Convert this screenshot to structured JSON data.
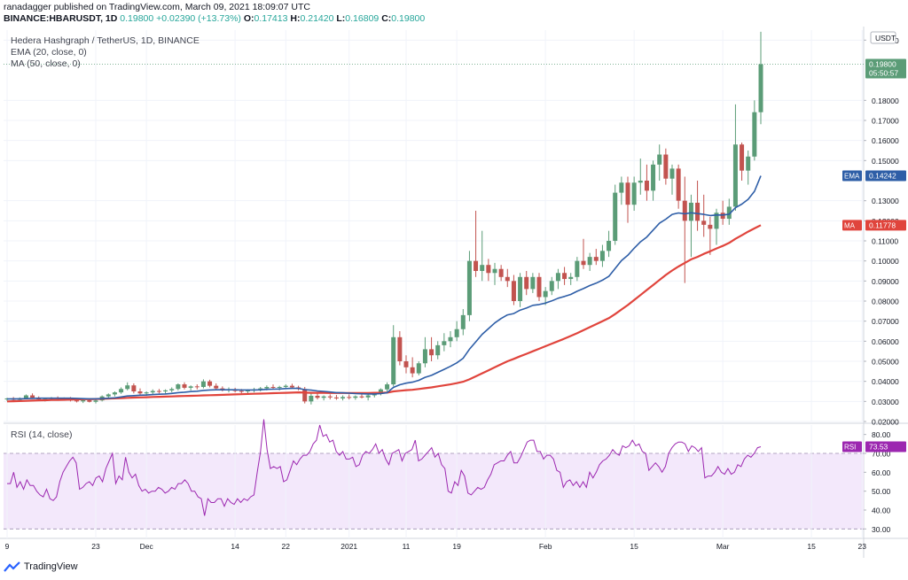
{
  "header": {
    "published": "ranadagger published on TradingView.com, March 09, 2021 18:09:07 UTC",
    "symbol": "BINANCE:HBARUSDT, 1D",
    "last": "0.19800",
    "change": "+0.02390 (+13.73%)",
    "o_label": "O:",
    "o": "0.17413",
    "h_label": "H:",
    "h": "0.21420",
    "l_label": "L:",
    "l": "0.16809",
    "c_label": "C:",
    "c": "0.19800"
  },
  "legend": {
    "title": "Hedera Hashgraph / TetherUS, 1D, BINANCE",
    "ema": "EMA (20, close, 0)",
    "ma": "MA (50, close, 0)",
    "rsi": "RSI (14, close)"
  },
  "brand": "TradingView",
  "colors": {
    "up": "#5b9c77",
    "down": "#c2534f",
    "ema": "#2e5ea7",
    "ma": "#e0443c",
    "rsi_line": "#9c27b0",
    "rsi_band": "#f3e8fb"
  },
  "chart_data": [
    {
      "type": "candlestick",
      "currency_label": "USDT",
      "ylim": [
        0.02,
        0.215
      ],
      "y_ticks": [
        "0.02000",
        "0.03000",
        "0.04000",
        "0.05000",
        "0.06000",
        "0.07000",
        "0.08000",
        "0.09000",
        "0.10000",
        "0.11000",
        "0.12000",
        "0.13000",
        "0.15000",
        "0.16000",
        "0.17000",
        "0.18000",
        "0.21000"
      ],
      "x_tick_labels": [
        "9",
        "23",
        "Dec",
        "14",
        "22",
        "2021",
        "11",
        "19",
        "Feb",
        "15",
        "Mar",
        "15",
        "23"
      ],
      "price_label": {
        "value": "0.19800",
        "countdown": "05:50:57"
      },
      "ema_label": {
        "name": "EMA",
        "value": "0.14242"
      },
      "ma_label": {
        "name": "MA",
        "value": "0.11778"
      },
      "candles": [
        [
          0.031,
          0.0318,
          0.0302,
          0.0315
        ],
        [
          0.0315,
          0.0322,
          0.0305,
          0.0308
        ],
        [
          0.0308,
          0.032,
          0.03,
          0.0316
        ],
        [
          0.0316,
          0.0335,
          0.031,
          0.033
        ],
        [
          0.033,
          0.034,
          0.0315,
          0.0318
        ],
        [
          0.0318,
          0.0325,
          0.0305,
          0.031
        ],
        [
          0.031,
          0.0318,
          0.03,
          0.0312
        ],
        [
          0.0312,
          0.0322,
          0.0305,
          0.0318
        ],
        [
          0.0318,
          0.0325,
          0.0308,
          0.0312
        ],
        [
          0.0312,
          0.032,
          0.0305,
          0.0316
        ],
        [
          0.0316,
          0.0322,
          0.03,
          0.0305
        ],
        [
          0.0305,
          0.0312,
          0.0295,
          0.03
        ],
        [
          0.03,
          0.031,
          0.0292,
          0.0306
        ],
        [
          0.0306,
          0.0312,
          0.0295,
          0.0298
        ],
        [
          0.0298,
          0.031,
          0.029,
          0.0305
        ],
        [
          0.0305,
          0.033,
          0.03,
          0.0325
        ],
        [
          0.0325,
          0.034,
          0.0318,
          0.0335
        ],
        [
          0.0335,
          0.035,
          0.0325,
          0.0345
        ],
        [
          0.0345,
          0.037,
          0.0338,
          0.0362
        ],
        [
          0.0362,
          0.0395,
          0.0355,
          0.038
        ],
        [
          0.038,
          0.039,
          0.034,
          0.035
        ],
        [
          0.035,
          0.0365,
          0.033,
          0.034
        ],
        [
          0.034,
          0.035,
          0.0328,
          0.0345
        ],
        [
          0.0345,
          0.036,
          0.0335,
          0.0352
        ],
        [
          0.0352,
          0.0362,
          0.034,
          0.035
        ],
        [
          0.035,
          0.036,
          0.034,
          0.0355
        ],
        [
          0.0355,
          0.037,
          0.0345,
          0.0362
        ],
        [
          0.0362,
          0.039,
          0.0355,
          0.0385
        ],
        [
          0.0385,
          0.0395,
          0.036,
          0.0368
        ],
        [
          0.0368,
          0.038,
          0.0355,
          0.0375
        ],
        [
          0.0375,
          0.0385,
          0.036,
          0.0372
        ],
        [
          0.0372,
          0.041,
          0.0365,
          0.04
        ],
        [
          0.04,
          0.0408,
          0.037,
          0.0378
        ],
        [
          0.0378,
          0.039,
          0.036,
          0.0365
        ],
        [
          0.0365,
          0.0375,
          0.035,
          0.0358
        ],
        [
          0.0358,
          0.037,
          0.0345,
          0.036
        ],
        [
          0.036,
          0.0368,
          0.0345,
          0.0352
        ],
        [
          0.0352,
          0.0362,
          0.034,
          0.035
        ],
        [
          0.035,
          0.036,
          0.0338,
          0.0355
        ],
        [
          0.0355,
          0.0368,
          0.0345,
          0.036
        ],
        [
          0.036,
          0.0372,
          0.035,
          0.0365
        ],
        [
          0.0365,
          0.038,
          0.0355,
          0.0372
        ],
        [
          0.0372,
          0.0385,
          0.036,
          0.0368
        ],
        [
          0.0368,
          0.0378,
          0.0355,
          0.0372
        ],
        [
          0.0372,
          0.0385,
          0.0362,
          0.0378
        ],
        [
          0.0378,
          0.0388,
          0.0365,
          0.037
        ],
        [
          0.037,
          0.0378,
          0.0355,
          0.0362
        ],
        [
          0.0362,
          0.0372,
          0.029,
          0.03
        ],
        [
          0.03,
          0.034,
          0.0285,
          0.0328
        ],
        [
          0.0328,
          0.034,
          0.031,
          0.0318
        ],
        [
          0.0318,
          0.033,
          0.0305,
          0.0325
        ],
        [
          0.0325,
          0.0335,
          0.031,
          0.032
        ],
        [
          0.032,
          0.0332,
          0.0308,
          0.0315
        ],
        [
          0.0315,
          0.033,
          0.0305,
          0.0322
        ],
        [
          0.0322,
          0.0335,
          0.031,
          0.0318
        ],
        [
          0.0318,
          0.033,
          0.0308,
          0.0325
        ],
        [
          0.0325,
          0.034,
          0.0315,
          0.032
        ],
        [
          0.032,
          0.0335,
          0.0305,
          0.033
        ],
        [
          0.033,
          0.0345,
          0.032,
          0.0338
        ],
        [
          0.0338,
          0.0365,
          0.033,
          0.036
        ],
        [
          0.036,
          0.0395,
          0.035,
          0.0385
        ],
        [
          0.0385,
          0.068,
          0.0375,
          0.062
        ],
        [
          0.062,
          0.065,
          0.048,
          0.05
        ],
        [
          0.05,
          0.053,
          0.044,
          0.047
        ],
        [
          0.047,
          0.052,
          0.042,
          0.044
        ],
        [
          0.044,
          0.05,
          0.043,
          0.049
        ],
        [
          0.049,
          0.062,
          0.047,
          0.056
        ],
        [
          0.056,
          0.062,
          0.05,
          0.053
        ],
        [
          0.053,
          0.06,
          0.051,
          0.058
        ],
        [
          0.058,
          0.064,
          0.055,
          0.06
        ],
        [
          0.06,
          0.065,
          0.057,
          0.062
        ],
        [
          0.062,
          0.07,
          0.06,
          0.066
        ],
        [
          0.066,
          0.076,
          0.063,
          0.073
        ],
        [
          0.073,
          0.105,
          0.07,
          0.1
        ],
        [
          0.1,
          0.125,
          0.092,
          0.095
        ],
        [
          0.095,
          0.115,
          0.09,
          0.098
        ],
        [
          0.098,
          0.101,
          0.09,
          0.094
        ],
        [
          0.094,
          0.099,
          0.088,
          0.096
        ],
        [
          0.096,
          0.098,
          0.09,
          0.092
        ],
        [
          0.092,
          0.096,
          0.087,
          0.09
        ],
        [
          0.09,
          0.093,
          0.078,
          0.08
        ],
        [
          0.08,
          0.094,
          0.077,
          0.092
        ],
        [
          0.092,
          0.095,
          0.083,
          0.086
        ],
        [
          0.086,
          0.094,
          0.084,
          0.092
        ],
        [
          0.092,
          0.094,
          0.08,
          0.082
        ],
        [
          0.082,
          0.087,
          0.078,
          0.085
        ],
        [
          0.085,
          0.092,
          0.083,
          0.09
        ],
        [
          0.09,
          0.096,
          0.086,
          0.094
        ],
        [
          0.094,
          0.097,
          0.088,
          0.091
        ],
        [
          0.091,
          0.094,
          0.088,
          0.092
        ],
        [
          0.092,
          0.102,
          0.09,
          0.1
        ],
        [
          0.1,
          0.111,
          0.096,
          0.098
        ],
        [
          0.098,
          0.104,
          0.095,
          0.102
        ],
        [
          0.102,
          0.106,
          0.098,
          0.1
        ],
        [
          0.1,
          0.108,
          0.097,
          0.105
        ],
        [
          0.105,
          0.115,
          0.102,
          0.11
        ],
        [
          0.11,
          0.138,
          0.108,
          0.134
        ],
        [
          0.134,
          0.142,
          0.128,
          0.139
        ],
        [
          0.139,
          0.142,
          0.119,
          0.128
        ],
        [
          0.128,
          0.142,
          0.125,
          0.139
        ],
        [
          0.139,
          0.151,
          0.133,
          0.14
        ],
        [
          0.14,
          0.148,
          0.13,
          0.135
        ],
        [
          0.135,
          0.15,
          0.13,
          0.148
        ],
        [
          0.148,
          0.158,
          0.14,
          0.153
        ],
        [
          0.153,
          0.156,
          0.138,
          0.141
        ],
        [
          0.141,
          0.148,
          0.133,
          0.146
        ],
        [
          0.146,
          0.148,
          0.126,
          0.13
        ],
        [
          0.13,
          0.142,
          0.089,
          0.12
        ],
        [
          0.12,
          0.133,
          0.102,
          0.129
        ],
        [
          0.129,
          0.14,
          0.115,
          0.12
        ],
        [
          0.12,
          0.133,
          0.112,
          0.118
        ],
        [
          0.118,
          0.122,
          0.103,
          0.116
        ],
        [
          0.116,
          0.126,
          0.108,
          0.124
        ],
        [
          0.124,
          0.13,
          0.118,
          0.121
        ],
        [
          0.121,
          0.131,
          0.118,
          0.127
        ],
        [
          0.127,
          0.178,
          0.125,
          0.158
        ],
        [
          0.158,
          0.159,
          0.14,
          0.145
        ],
        [
          0.145,
          0.155,
          0.138,
          0.152
        ],
        [
          0.152,
          0.18,
          0.15,
          0.1741
        ],
        [
          0.1741,
          0.2142,
          0.1681,
          0.198
        ]
      ],
      "ema": [
        0.0312,
        0.0313,
        0.0313,
        0.0314,
        0.0315,
        0.0316,
        0.0316,
        0.0316,
        0.0316,
        0.0316,
        0.0316,
        0.0315,
        0.0314,
        0.0313,
        0.0313,
        0.0314,
        0.0316,
        0.0318,
        0.0322,
        0.0327,
        0.0329,
        0.0331,
        0.0332,
        0.0334,
        0.0336,
        0.0337,
        0.034,
        0.0344,
        0.0346,
        0.0349,
        0.0351,
        0.0355,
        0.0357,
        0.0358,
        0.0358,
        0.0358,
        0.0358,
        0.0357,
        0.0357,
        0.0357,
        0.0358,
        0.036,
        0.0361,
        0.0362,
        0.0364,
        0.0365,
        0.0365,
        0.0359,
        0.0356,
        0.0352,
        0.035,
        0.0347,
        0.0344,
        0.0343,
        0.0341,
        0.0339,
        0.0338,
        0.0337,
        0.0337,
        0.0339,
        0.0344,
        0.037,
        0.0383,
        0.0391,
        0.0396,
        0.0405,
        0.042,
        0.043,
        0.0445,
        0.046,
        0.0475,
        0.0492,
        0.0515,
        0.056,
        0.0597,
        0.0634,
        0.0663,
        0.0691,
        0.0713,
        0.0731,
        0.0738,
        0.0755,
        0.0765,
        0.0779,
        0.0783,
        0.079,
        0.0801,
        0.0814,
        0.0823,
        0.0833,
        0.0849,
        0.0862,
        0.0877,
        0.0889,
        0.0904,
        0.0923,
        0.0962,
        0.1002,
        0.1028,
        0.1063,
        0.1095,
        0.1119,
        0.1154,
        0.1188,
        0.1208,
        0.1232,
        0.1239,
        0.1235,
        0.124,
        0.1236,
        0.1232,
        0.1226,
        0.1229,
        0.1229,
        0.1233,
        0.1265,
        0.1283,
        0.1307,
        0.1347,
        0.1424
      ],
      "ma": [
        0.03,
        0.0301,
        0.0302,
        0.0303,
        0.0304,
        0.0305,
        0.0306,
        0.0307,
        0.0307,
        0.0308,
        0.0309,
        0.031,
        0.0311,
        0.0311,
        0.0312,
        0.0313,
        0.0314,
        0.0315,
        0.0316,
        0.0318,
        0.0319,
        0.032,
        0.0321,
        0.0322,
        0.0323,
        0.0324,
        0.0325,
        0.0326,
        0.0327,
        0.0328,
        0.0329,
        0.033,
        0.0331,
        0.0332,
        0.0333,
        0.0334,
        0.0335,
        0.0336,
        0.0337,
        0.0338,
        0.0339,
        0.034,
        0.0341,
        0.0342,
        0.0343,
        0.0344,
        0.0345,
        0.0344,
        0.0343,
        0.0343,
        0.0343,
        0.0342,
        0.0342,
        0.0342,
        0.0342,
        0.0342,
        0.0342,
        0.0342,
        0.0343,
        0.0343,
        0.0344,
        0.035,
        0.0353,
        0.0356,
        0.0358,
        0.0362,
        0.0366,
        0.037,
        0.0375,
        0.038,
        0.0385,
        0.0391,
        0.0398,
        0.041,
        0.0425,
        0.044,
        0.0455,
        0.047,
        0.0485,
        0.05,
        0.0512,
        0.0525,
        0.0537,
        0.055,
        0.0562,
        0.0575,
        0.0588,
        0.06,
        0.0613,
        0.0626,
        0.064,
        0.0655,
        0.067,
        0.0685,
        0.07,
        0.0715,
        0.0735,
        0.0758,
        0.078,
        0.0805,
        0.083,
        0.0855,
        0.088,
        0.0905,
        0.093,
        0.0952,
        0.0972,
        0.099,
        0.1008,
        0.102,
        0.1035,
        0.1048,
        0.1062,
        0.1075,
        0.109,
        0.111,
        0.1128,
        0.1146,
        0.1162,
        0.1178
      ]
    },
    {
      "type": "line",
      "name": "RSI (14, close)",
      "ylim": [
        25,
        85
      ],
      "y_ticks": [
        "30.00",
        "40.00",
        "50.00",
        "60.00",
        "70.00",
        "80.00"
      ],
      "band": [
        30,
        70
      ],
      "value_label": {
        "name": "RSI",
        "value": "73.53"
      },
      "values": [
        54,
        54,
        60,
        52,
        55,
        51,
        56,
        53,
        53,
        50,
        48,
        47,
        51,
        46,
        45,
        47,
        55,
        60,
        63,
        66,
        68,
        65,
        51,
        52,
        54,
        55,
        53,
        57,
        58,
        55,
        62,
        66,
        70,
        54,
        58,
        56,
        68,
        60,
        57,
        59,
        53,
        50,
        51,
        49,
        50,
        50,
        52,
        51,
        49,
        50,
        52,
        51,
        54,
        54,
        56,
        54,
        50,
        50,
        47,
        46,
        37,
        46,
        44,
        44,
        46,
        46,
        42,
        46,
        44,
        43,
        46,
        44,
        46,
        45,
        47,
        48,
        60,
        71,
        88,
        72,
        62,
        63,
        62,
        63,
        55,
        56,
        61,
        66,
        64,
        67,
        69,
        69,
        71,
        75,
        77,
        85,
        79,
        80,
        76,
        77,
        71,
        69,
        71,
        67,
        67,
        68,
        63,
        64,
        69,
        71,
        70,
        72,
        75,
        70,
        72,
        67,
        64,
        70,
        71,
        72,
        66,
        70,
        71,
        72,
        77,
        66,
        67,
        69,
        71,
        73,
        68,
        70,
        64,
        62,
        50,
        49,
        55,
        53,
        61,
        58,
        49,
        48,
        50,
        52,
        51,
        52,
        56,
        59,
        64,
        65,
        66,
        66,
        69,
        71,
        65,
        65,
        68,
        72,
        76,
        77,
        77,
        71,
        71,
        67,
        69,
        69,
        67,
        61,
        60,
        52,
        55,
        56,
        53,
        55,
        52,
        55,
        52,
        60,
        57,
        60,
        64,
        66,
        67,
        69,
        72,
        70,
        69,
        74,
        73,
        74,
        77,
        74,
        75,
        71,
        70,
        61,
        63,
        65,
        63,
        60,
        63,
        70,
        73,
        75,
        76,
        76,
        75,
        71,
        74,
        73,
        71,
        73,
        57,
        58,
        58,
        60,
        63,
        60,
        59,
        62,
        59,
        60,
        64,
        63,
        67,
        69,
        68,
        70,
        73,
        73.53
      ]
    }
  ]
}
